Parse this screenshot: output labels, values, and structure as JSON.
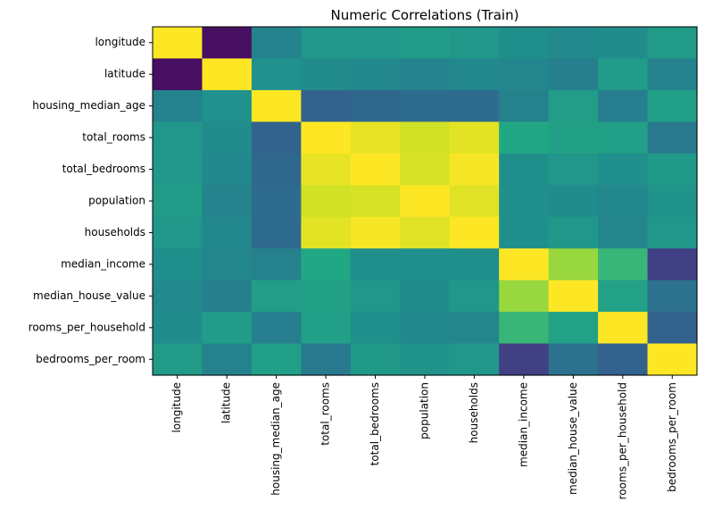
{
  "chart_data": {
    "type": "heatmap",
    "title": "Numeric Correlations (Train)",
    "xlabel": "",
    "ylabel": "",
    "colormap": "viridis",
    "value_range": [
      -1,
      1
    ],
    "grid": false,
    "legend": "none",
    "variables": [
      "longitude",
      "latitude",
      "housing_median_age",
      "total_rooms",
      "total_bedrooms",
      "population",
      "households",
      "median_income",
      "median_house_value",
      "rooms_per_household",
      "bedrooms_per_room"
    ],
    "matrix": [
      [
        1.0,
        -0.92,
        -0.11,
        0.05,
        0.07,
        0.1,
        0.06,
        -0.01,
        -0.05,
        -0.03,
        0.09
      ],
      [
        -0.92,
        1.0,
        0.01,
        -0.04,
        -0.07,
        -0.11,
        -0.07,
        -0.08,
        -0.14,
        0.1,
        -0.12
      ],
      [
        -0.11,
        0.01,
        1.0,
        -0.36,
        -0.32,
        -0.3,
        -0.3,
        -0.12,
        0.11,
        -0.15,
        0.13
      ],
      [
        0.05,
        -0.04,
        -0.36,
        1.0,
        0.93,
        0.86,
        0.92,
        0.2,
        0.14,
        0.13,
        -0.19
      ],
      [
        0.07,
        -0.07,
        -0.32,
        0.93,
        1.0,
        0.88,
        0.98,
        -0.01,
        0.05,
        0.0,
        0.08
      ],
      [
        0.1,
        -0.11,
        -0.3,
        0.86,
        0.88,
        1.0,
        0.91,
        0.0,
        -0.03,
        -0.07,
        0.03
      ],
      [
        0.06,
        -0.07,
        -0.3,
        0.92,
        0.98,
        0.91,
        1.0,
        -0.01,
        0.06,
        -0.08,
        0.06
      ],
      [
        -0.01,
        -0.08,
        -0.12,
        0.2,
        -0.01,
        0.0,
        -0.01,
        1.0,
        0.69,
        0.33,
        -0.62
      ],
      [
        -0.05,
        -0.14,
        0.11,
        0.14,
        0.05,
        -0.03,
        0.06,
        0.69,
        1.0,
        0.15,
        -0.25
      ],
      [
        -0.03,
        0.1,
        -0.15,
        0.13,
        0.0,
        -0.07,
        -0.08,
        0.33,
        0.15,
        1.0,
        -0.37
      ],
      [
        0.09,
        -0.12,
        0.13,
        -0.19,
        0.08,
        0.03,
        0.06,
        -0.62,
        -0.25,
        -0.37,
        1.0
      ]
    ]
  }
}
